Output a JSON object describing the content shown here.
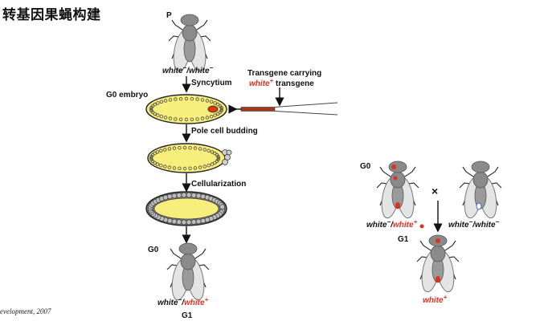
{
  "title": "转基因果蝇构建",
  "citation": "evelopment, 2007",
  "left_panel": {
    "p_label": "P",
    "p_genotype": {
      "a": "white",
      "sup1": "−",
      "sep": "/",
      "b": "white",
      "sup2": "−"
    },
    "step1": "Syncytium",
    "g0_embryo_label": "G0 embryo",
    "transgene_line1": "Transgene carrying",
    "transgene_white": "white",
    "transgene_plus": "+",
    "transgene_word": " transgene",
    "step2": "Pole cell budding",
    "step3": "Cellularization",
    "g0_label": "G0",
    "g1_genotype": {
      "a": "white",
      "sup1": "−",
      "sep": "/",
      "b": "white",
      "sup2": "+"
    },
    "g1_label": "G1"
  },
  "right_panel": {
    "g0_label": "G0",
    "cross_symbol": "×",
    "left_genotype": {
      "a": "white",
      "sup1": "−",
      "sep": "/",
      "b": "white",
      "sup2": "+"
    },
    "right_genotype": {
      "a": "white",
      "sup1": "−",
      "sep": "/",
      "b": "white",
      "sup2": "−"
    },
    "g1_label": "G1",
    "offspring_label": "white",
    "offspring_sup": "+"
  },
  "colors": {
    "embryo_fill": "#f8ee7c",
    "red": "#e0301e",
    "fly_body": "#8a8a8a",
    "wing": "#e4e4e4"
  }
}
